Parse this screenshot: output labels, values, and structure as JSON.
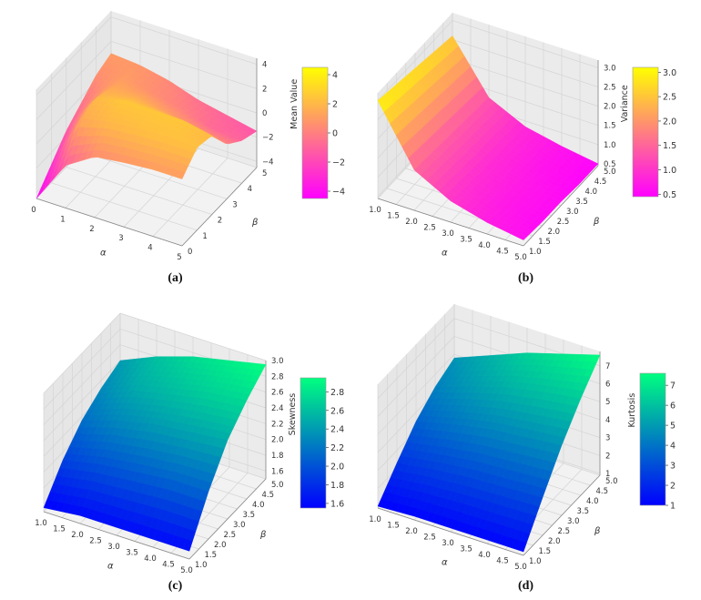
{
  "chart_data": [
    {
      "type": "surface",
      "caption": "(a)",
      "xlabel": "α",
      "ylabel": "β",
      "zlabel": "Mean Value",
      "colorbar_label": "Mean Value",
      "colormap": [
        "#ff00ff",
        "#ffff00"
      ],
      "x": [
        0,
        1,
        2,
        3,
        4,
        5
      ],
      "y": [
        0,
        1,
        2,
        3,
        4,
        5
      ],
      "z": [
        [
          -4.5,
          -3,
          -1.5,
          -0.5,
          0.5,
          1
        ],
        [
          -1,
          1.5,
          2,
          1.5,
          1,
          0.8
        ],
        [
          0.5,
          2,
          2.5,
          1.5,
          0.5,
          0.3
        ],
        [
          0.8,
          2.2,
          2.5,
          1,
          0,
          -0.5
        ],
        [
          1,
          2.3,
          2.5,
          0.5,
          -0.8,
          -1
        ],
        [
          1,
          2.3,
          2,
          0,
          -1,
          -1.5
        ]
      ],
      "xlim": [
        0,
        5
      ],
      "ylim": [
        0,
        5
      ],
      "zlim": [
        -4.5,
        4.5
      ],
      "xticks": [
        "0",
        "1",
        "2",
        "3",
        "4",
        "5"
      ],
      "yticks": [
        "0",
        "1",
        "2",
        "3",
        "4",
        "5"
      ],
      "zticks": [
        "−4",
        "−2",
        "0",
        "2",
        "4"
      ],
      "zticks_values": [
        -4,
        -2,
        0,
        2,
        4
      ],
      "colorbar_range": [
        -4.5,
        4.5
      ],
      "colorbar_ticks": [
        "−4",
        "−2",
        "0",
        "2",
        "4"
      ],
      "colorbar_ticks_values": [
        -4,
        -2,
        0,
        2,
        4
      ]
    },
    {
      "type": "surface",
      "caption": "(b)",
      "xlabel": "α",
      "ylabel": "β",
      "zlabel": "Variance",
      "colorbar_label": "Variance",
      "colormap": [
        "#ff00ff",
        "#ffff00"
      ],
      "x": [
        1,
        2,
        3,
        4,
        5
      ],
      "y": [
        1,
        2,
        3,
        4,
        5
      ],
      "z": [
        [
          3.0,
          2.9,
          2.8,
          2.7,
          2.6
        ],
        [
          1.5,
          1.45,
          1.4,
          1.35,
          1.3
        ],
        [
          1.0,
          0.95,
          0.9,
          0.9,
          0.85
        ],
        [
          0.75,
          0.7,
          0.7,
          0.65,
          0.65
        ],
        [
          0.6,
          0.55,
          0.55,
          0.5,
          0.5
        ]
      ],
      "xlim": [
        1,
        5
      ],
      "ylim": [
        1,
        5
      ],
      "zlim": [
        0.45,
        3.2
      ],
      "xticks": [
        "1.0",
        "1.5",
        "2.0",
        "2.5",
        "3.0",
        "3.5",
        "4.0",
        "4.5",
        "5.0"
      ],
      "yticks": [
        "1.0",
        "1.5",
        "2.0",
        "2.5",
        "3.0",
        "3.5",
        "4.0",
        "4.5",
        "5.0"
      ],
      "zticks": [
        "0.5",
        "1.0",
        "1.5",
        "2.0",
        "2.5",
        "3.0"
      ],
      "zticks_values": [
        0.5,
        1.0,
        1.5,
        2.0,
        2.5,
        3.0
      ],
      "colorbar_range": [
        0.45,
        3.1
      ],
      "colorbar_ticks": [
        "0.5",
        "1.0",
        "1.5",
        "2.0",
        "2.5",
        "3.0"
      ],
      "colorbar_ticks_values": [
        0.5,
        1.0,
        1.5,
        2.0,
        2.5,
        3.0
      ]
    },
    {
      "type": "surface",
      "caption": "(c)",
      "xlabel": "α",
      "ylabel": "β",
      "zlabel": "Skewness",
      "colorbar_label": "Skewness",
      "colormap": [
        "#0000ff",
        "#00ff80"
      ],
      "x": [
        1,
        2,
        3,
        4,
        5
      ],
      "y": [
        1,
        2,
        3,
        4,
        5
      ],
      "z": [
        [
          1.55,
          1.9,
          2.15,
          2.3,
          2.4
        ],
        [
          1.6,
          2.0,
          2.3,
          2.5,
          2.6
        ],
        [
          1.6,
          2.05,
          2.4,
          2.6,
          2.75
        ],
        [
          1.6,
          2.1,
          2.45,
          2.7,
          2.85
        ],
        [
          1.6,
          2.1,
          2.5,
          2.75,
          2.95
        ]
      ],
      "xlim": [
        1,
        5
      ],
      "ylim": [
        1,
        5
      ],
      "zlim": [
        1.5,
        3.0
      ],
      "xticks": [
        "1.0",
        "1.5",
        "2.0",
        "2.5",
        "3.0",
        "3.5",
        "4.0",
        "4.5",
        "5.0"
      ],
      "yticks": [
        "1.0",
        "1.5",
        "2.0",
        "2.5",
        "3.0",
        "3.5",
        "4.0",
        "4.5",
        "5.0"
      ],
      "zticks": [
        "1.6",
        "1.8",
        "2.0",
        "2.2",
        "2.4",
        "2.6",
        "2.8",
        "3.0"
      ],
      "zticks_values": [
        1.6,
        1.8,
        2.0,
        2.2,
        2.4,
        2.6,
        2.8,
        3.0
      ],
      "colorbar_range": [
        1.55,
        2.95
      ],
      "colorbar_ticks": [
        "1.6",
        "1.8",
        "2.0",
        "2.2",
        "2.4",
        "2.6",
        "2.8"
      ],
      "colorbar_ticks_values": [
        1.6,
        1.8,
        2.0,
        2.2,
        2.4,
        2.6,
        2.8
      ]
    },
    {
      "type": "surface",
      "caption": "(d)",
      "xlabel": "α",
      "ylabel": "β",
      "zlabel": "Kurtosis",
      "colorbar_label": "Kurtosis",
      "colormap": [
        "#0000ff",
        "#00ff80"
      ],
      "x": [
        1,
        2,
        3,
        4,
        5
      ],
      "y": [
        1,
        2,
        3,
        4,
        5
      ],
      "z": [
        [
          1.0,
          2.3,
          3.5,
          4.3,
          4.8
        ],
        [
          1.1,
          2.6,
          4.0,
          5.0,
          5.6
        ],
        [
          1.1,
          2.8,
          4.4,
          5.6,
          6.4
        ],
        [
          1.1,
          2.9,
          4.6,
          6.0,
          7.0
        ],
        [
          1.1,
          3.0,
          4.8,
          6.3,
          7.6
        ]
      ],
      "xlim": [
        1,
        5
      ],
      "ylim": [
        1,
        5
      ],
      "zlim": [
        0.9,
        7.8
      ],
      "xticks": [
        "1.0",
        "1.5",
        "2.0",
        "2.5",
        "3.0",
        "3.5",
        "4.0",
        "4.5",
        "5.0"
      ],
      "yticks": [
        "1.0",
        "1.5",
        "2.0",
        "2.5",
        "3.0",
        "3.5",
        "4.0",
        "4.5",
        "5.0"
      ],
      "zticks": [
        "1",
        "2",
        "3",
        "4",
        "5",
        "6",
        "7"
      ],
      "zticks_values": [
        1,
        2,
        3,
        4,
        5,
        6,
        7
      ],
      "colorbar_range": [
        1.0,
        7.6
      ],
      "colorbar_ticks": [
        "1",
        "2",
        "3",
        "4",
        "5",
        "6",
        "7"
      ],
      "colorbar_ticks_values": [
        1,
        2,
        3,
        4,
        5,
        6,
        7
      ]
    }
  ]
}
